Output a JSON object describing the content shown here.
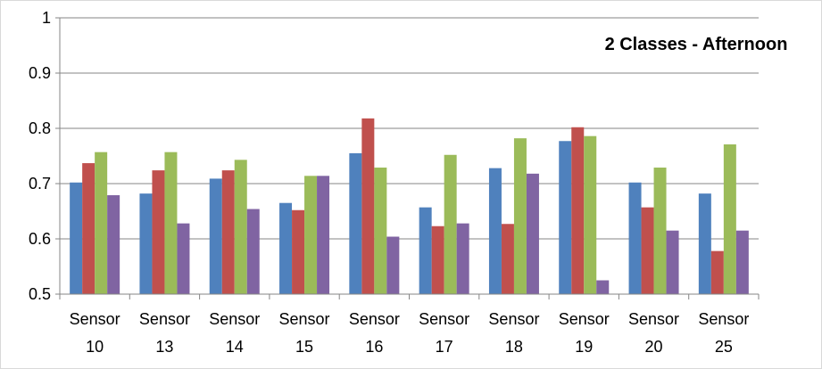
{
  "chart_data": {
    "type": "bar",
    "title": "2 Classes - Afternoon",
    "xlabel": "",
    "ylabel": "",
    "ylim": [
      0.5,
      1
    ],
    "yticks": [
      "0.5",
      "0.6",
      "0.7",
      "0.8",
      "0.9",
      "1"
    ],
    "grid": true,
    "legend": "none",
    "categories": [
      [
        "Sensor",
        "10"
      ],
      [
        "Sensor",
        "13"
      ],
      [
        "Sensor",
        "14"
      ],
      [
        "Sensor",
        "15"
      ],
      [
        "Sensor",
        "16"
      ],
      [
        "Sensor",
        "17"
      ],
      [
        "Sensor",
        "18"
      ],
      [
        "Sensor",
        "19"
      ],
      [
        "Sensor",
        "20"
      ],
      [
        "Sensor",
        "25"
      ]
    ],
    "colors": [
      "#4f81bd",
      "#c0504d",
      "#9bbb59",
      "#8064a2"
    ],
    "series": [
      {
        "values": [
          0.702,
          0.682,
          0.709,
          0.665,
          0.755,
          0.657,
          0.728,
          0.777,
          0.702,
          0.682
        ]
      },
      {
        "values": [
          0.737,
          0.724,
          0.724,
          0.652,
          0.818,
          0.623,
          0.627,
          0.802,
          0.657,
          0.578
        ]
      },
      {
        "values": [
          0.757,
          0.757,
          0.743,
          0.714,
          0.729,
          0.752,
          0.782,
          0.786,
          0.729,
          0.771
        ]
      },
      {
        "values": [
          0.679,
          0.628,
          0.654,
          0.714,
          0.604,
          0.628,
          0.718,
          0.525,
          0.615,
          0.615
        ]
      }
    ]
  }
}
